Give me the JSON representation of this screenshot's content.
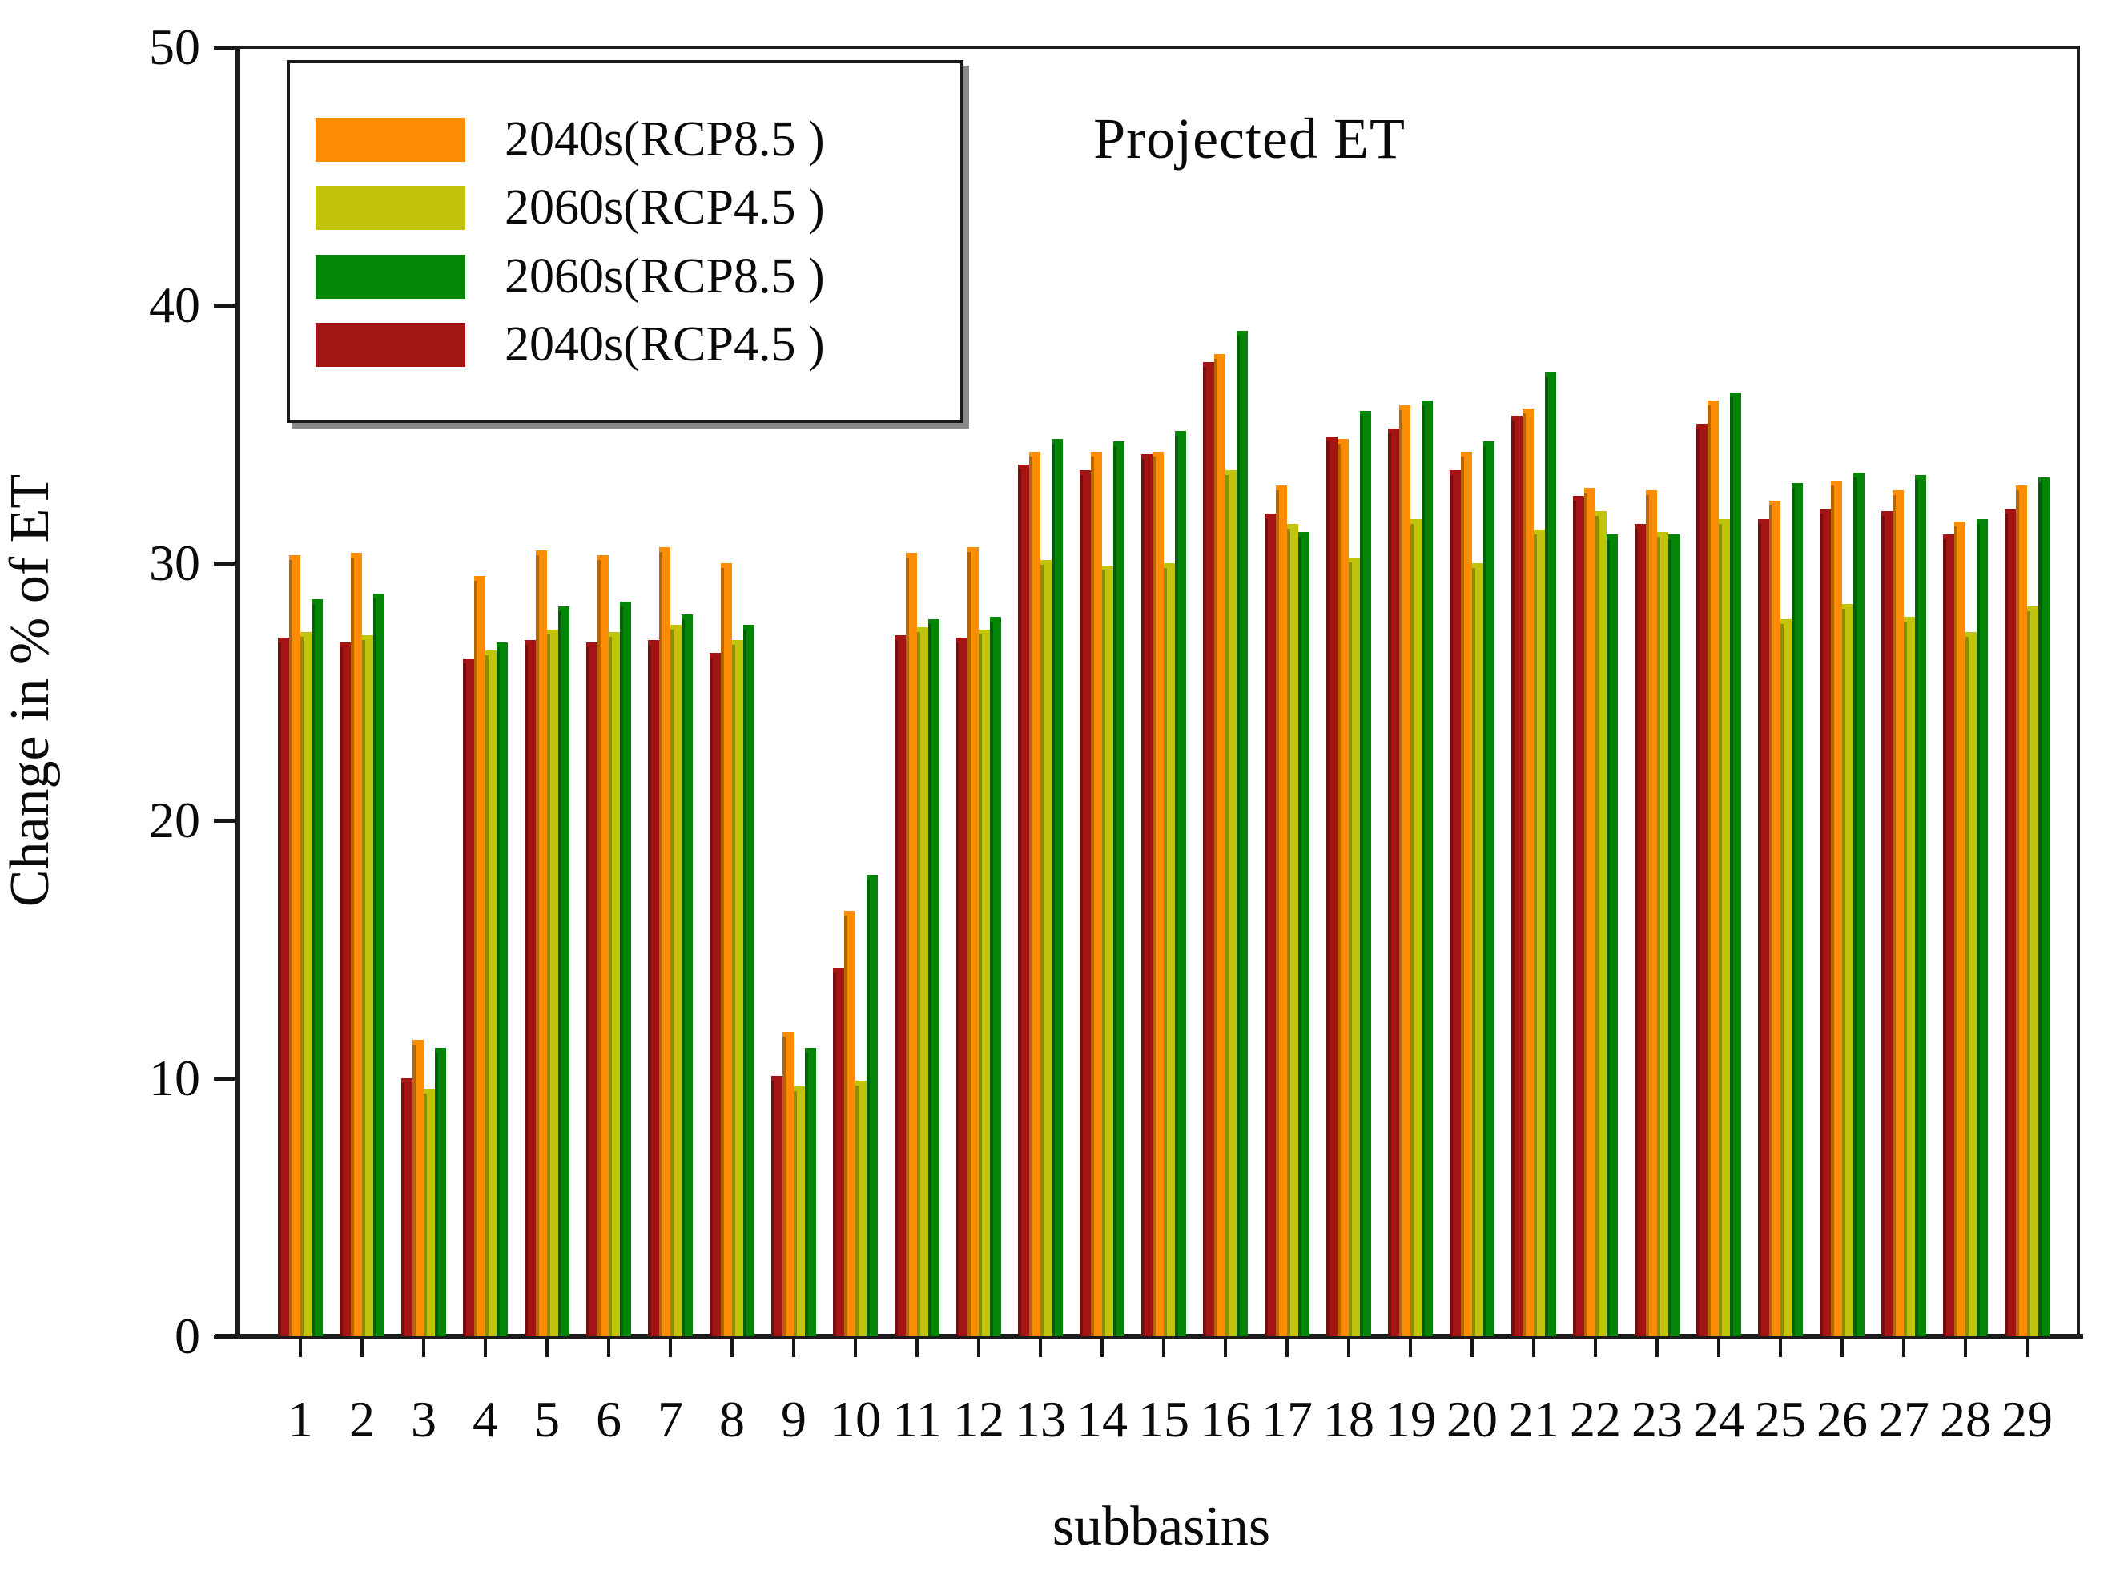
{
  "figure": {
    "title": "Projected ET",
    "xlabel": "subbasins",
    "ylabel": "Change in % of ET"
  },
  "chart_data": {
    "type": "bar",
    "title": "Projected ET",
    "xlabel": "subbasins",
    "ylabel": "Change in % of ET",
    "ylim": [
      0,
      50
    ],
    "yticks": [
      0,
      10,
      20,
      30,
      40,
      50
    ],
    "grid": false,
    "legend_position": "top-left",
    "categories": [
      "1",
      "2",
      "3",
      "4",
      "5",
      "6",
      "7",
      "8",
      "9",
      "10",
      "11",
      "12",
      "13",
      "14",
      "15",
      "16",
      "17",
      "18",
      "19",
      "20",
      "21",
      "22",
      "23",
      "24",
      "25",
      "26",
      "27",
      "28",
      "29"
    ],
    "bar_order": [
      3,
      0,
      1,
      2
    ],
    "series": [
      {
        "name": "2040s(RCP8.5 )",
        "color": "#FC8C04",
        "values": [
          30.3,
          30.4,
          11.5,
          29.5,
          30.5,
          30.3,
          30.6,
          30.0,
          11.8,
          16.5,
          30.4,
          30.6,
          34.3,
          34.3,
          34.3,
          38.1,
          33.0,
          34.8,
          36.1,
          34.3,
          36.0,
          32.9,
          32.8,
          36.3,
          32.4,
          33.2,
          32.8,
          31.6,
          33.0
        ]
      },
      {
        "name": "2060s(RCP4.5 )",
        "color": "#C2C40B",
        "values": [
          27.3,
          27.2,
          9.6,
          26.6,
          27.4,
          27.3,
          27.6,
          27.0,
          9.7,
          9.9,
          27.5,
          27.4,
          30.1,
          29.9,
          30.0,
          33.6,
          31.5,
          30.2,
          31.7,
          30.0,
          31.3,
          32.0,
          31.2,
          31.7,
          27.8,
          28.4,
          27.9,
          27.3,
          28.3
        ]
      },
      {
        "name": "2060s(RCP8.5 )",
        "color": "#058505",
        "values": [
          28.6,
          28.8,
          11.2,
          26.9,
          28.3,
          28.5,
          28.0,
          27.6,
          11.2,
          17.9,
          27.8,
          27.9,
          34.8,
          34.7,
          35.1,
          39.0,
          31.2,
          35.9,
          36.3,
          34.7,
          37.4,
          31.1,
          31.1,
          36.6,
          33.1,
          33.5,
          33.4,
          31.7,
          33.3
        ]
      },
      {
        "name": "2040s(RCP4.5 )",
        "color": "#A31414",
        "values": [
          27.1,
          26.9,
          10.0,
          26.3,
          27.0,
          26.9,
          27.0,
          26.5,
          10.1,
          14.3,
          27.2,
          27.1,
          33.8,
          33.6,
          34.2,
          37.8,
          31.9,
          34.9,
          35.2,
          33.6,
          35.7,
          32.6,
          31.5,
          35.4,
          31.7,
          32.1,
          32.0,
          31.1,
          32.1
        ]
      }
    ]
  }
}
